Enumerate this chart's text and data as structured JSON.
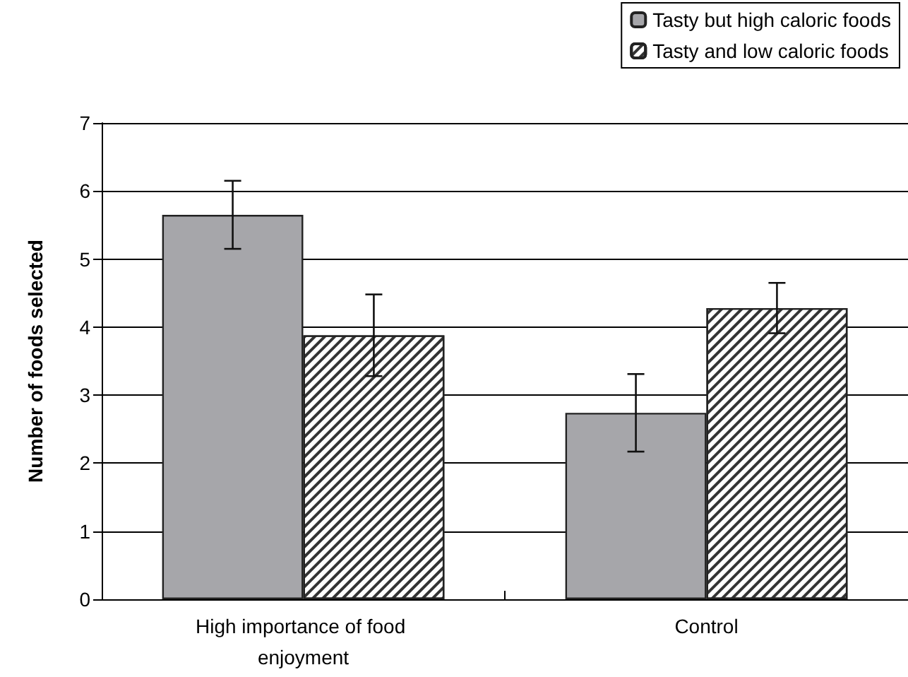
{
  "chart_data": {
    "type": "bar",
    "ylabel": "Number of foods selected",
    "categories": [
      "High importance of food enjoyment",
      "Control"
    ],
    "series": [
      {
        "name": "Tasty but high caloric foods",
        "color": "#a6a6aa",
        "values": [
          5.65,
          2.74
        ],
        "errors": [
          0.5,
          0.57
        ]
      },
      {
        "name": "Tasty and low caloric foods",
        "color": "#ffffff",
        "values": [
          3.88,
          4.28
        ],
        "errors": [
          0.6,
          0.37
        ]
      }
    ],
    "ylim": [
      0,
      7
    ],
    "yticks": [
      0,
      1,
      2,
      3,
      4,
      5,
      6,
      7
    ],
    "grid": "y",
    "legend": "top right"
  }
}
